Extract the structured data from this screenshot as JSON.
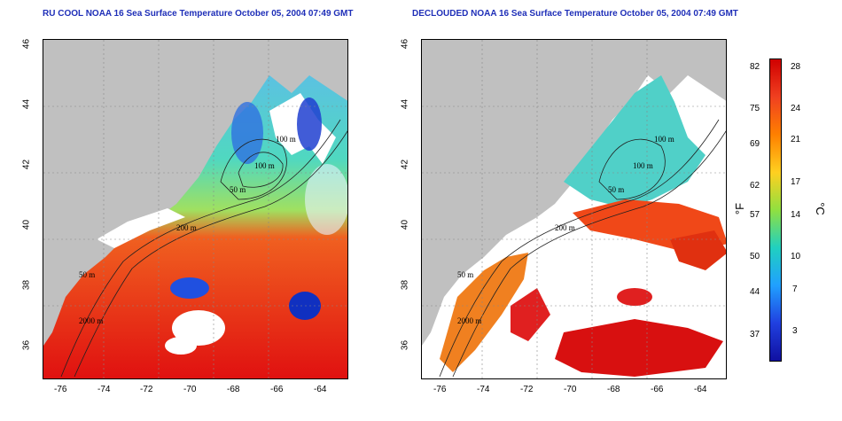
{
  "titles": {
    "left": "RU COOL NOAA 16 Sea Surface Temperature October 05, 2004 07:49 GMT",
    "right": "DECLOUDED NOAA 16 Sea Surface Temperature October 05, 2004 07:49 GMT"
  },
  "axes": {
    "x_ticks": [
      "-76",
      "-74",
      "-72",
      "-70",
      "-68",
      "-66",
      "-64"
    ],
    "y_ticks": [
      "46",
      "44",
      "42",
      "40",
      "38",
      "36"
    ]
  },
  "contours": {
    "left": [
      "100 m",
      "100 m",
      "50 m",
      "200 m",
      "50 m",
      "2000 m"
    ],
    "right": [
      "100 m",
      "100 m",
      "50 m",
      "200 m",
      "50 m",
      "2000 m"
    ]
  },
  "colorbar": {
    "fahrenheit_label": "°F",
    "celsius_label": "°C",
    "fahrenheit_ticks": [
      "82",
      "75",
      "69",
      "62",
      "57",
      "50",
      "44",
      "37"
    ],
    "celsius_ticks": [
      "28",
      "24",
      "21",
      "17",
      "14",
      "10",
      "7",
      "3"
    ],
    "stops": [
      "#d00000",
      "#f04020",
      "#ff8000",
      "#ffd020",
      "#90e040",
      "#20d0c0",
      "#20a0ff",
      "#2040e0",
      "#1010a0"
    ]
  },
  "colors": {
    "land": "#c0c0c0",
    "cloud": "#ffffff",
    "title": "#1f2fb8"
  }
}
